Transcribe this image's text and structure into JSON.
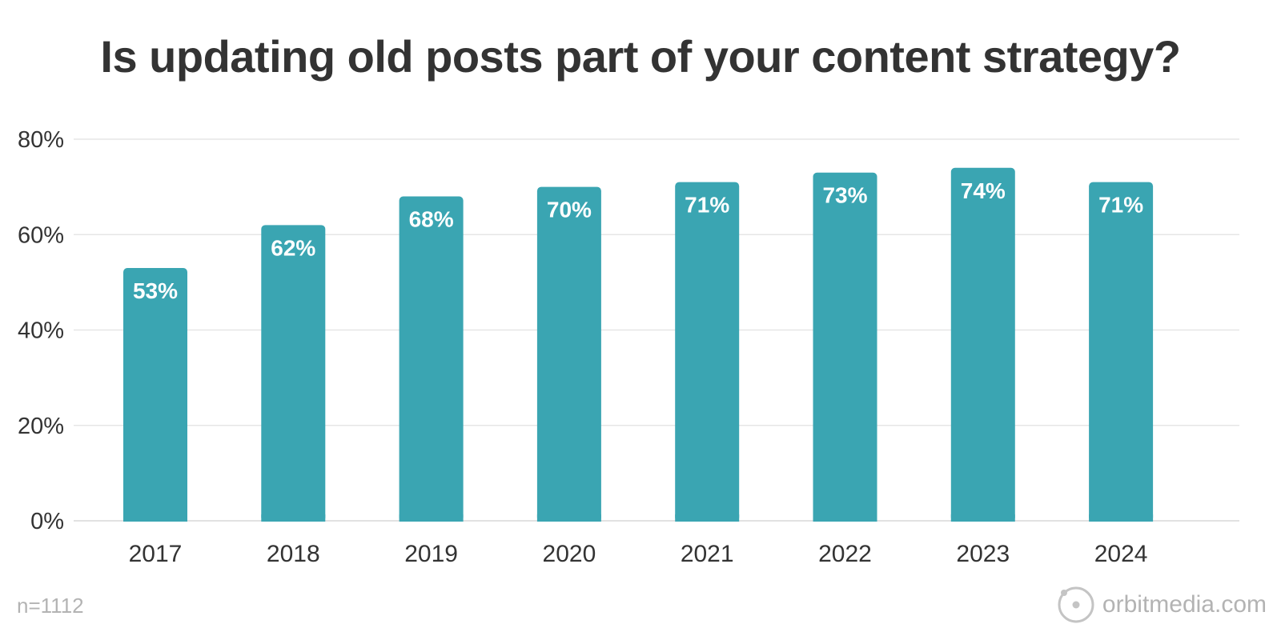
{
  "chart_data": {
    "type": "bar",
    "title": "Is updating old posts part of your content strategy?",
    "categories": [
      "2017",
      "2018",
      "2019",
      "2020",
      "2021",
      "2022",
      "2023",
      "2024"
    ],
    "values": [
      53,
      62,
      68,
      70,
      71,
      73,
      74,
      71
    ],
    "data_labels": [
      "53%",
      "62%",
      "68%",
      "70%",
      "71%",
      "73%",
      "74%",
      "71%"
    ],
    "xlabel": "",
    "ylabel": "",
    "ylim": [
      0,
      80
    ],
    "yticks": [
      0,
      20,
      40,
      60,
      80
    ],
    "ytick_labels": [
      "0%",
      "20%",
      "40%",
      "60%",
      "80%"
    ],
    "grid": true,
    "bar_color": "#3aa5b2",
    "label_color": "#ffffff"
  },
  "footnote": "n=1112",
  "brand": "orbitmedia.com"
}
